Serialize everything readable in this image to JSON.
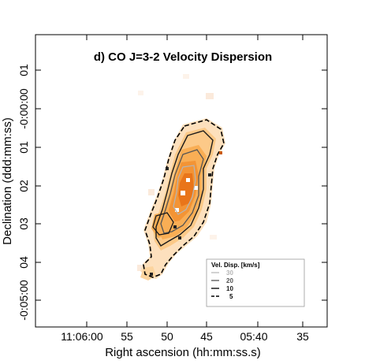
{
  "chart_data": {
    "type": "contour-map",
    "title": "d) CO J=3-2 Velocity Dispersion",
    "xlabel": "Right ascension (hh:mm:ss.s)",
    "ylabel": "Declination (ddd:mm:ss)",
    "x_ticks": [
      "11:06:00",
      "55",
      "50",
      "45",
      "05:40",
      "35"
    ],
    "y_ticks": [
      "01",
      "-0:00:00",
      "01",
      "02",
      "03",
      "04",
      "-0:05:00"
    ],
    "legend": {
      "title": "Vel. Disp. [km/s]",
      "entries": [
        {
          "label": "30",
          "color": "#b5b5b5"
        },
        {
          "label": "20",
          "color": "#555555"
        },
        {
          "label": "10",
          "color": "#1a1a1a"
        },
        {
          "label": "5",
          "color": "#000000"
        }
      ],
      "placement": "bottom-right"
    },
    "colormap": [
      "#fde9d0",
      "#fcd49e",
      "#f9b762",
      "#f49a32",
      "#e9751a"
    ]
  }
}
